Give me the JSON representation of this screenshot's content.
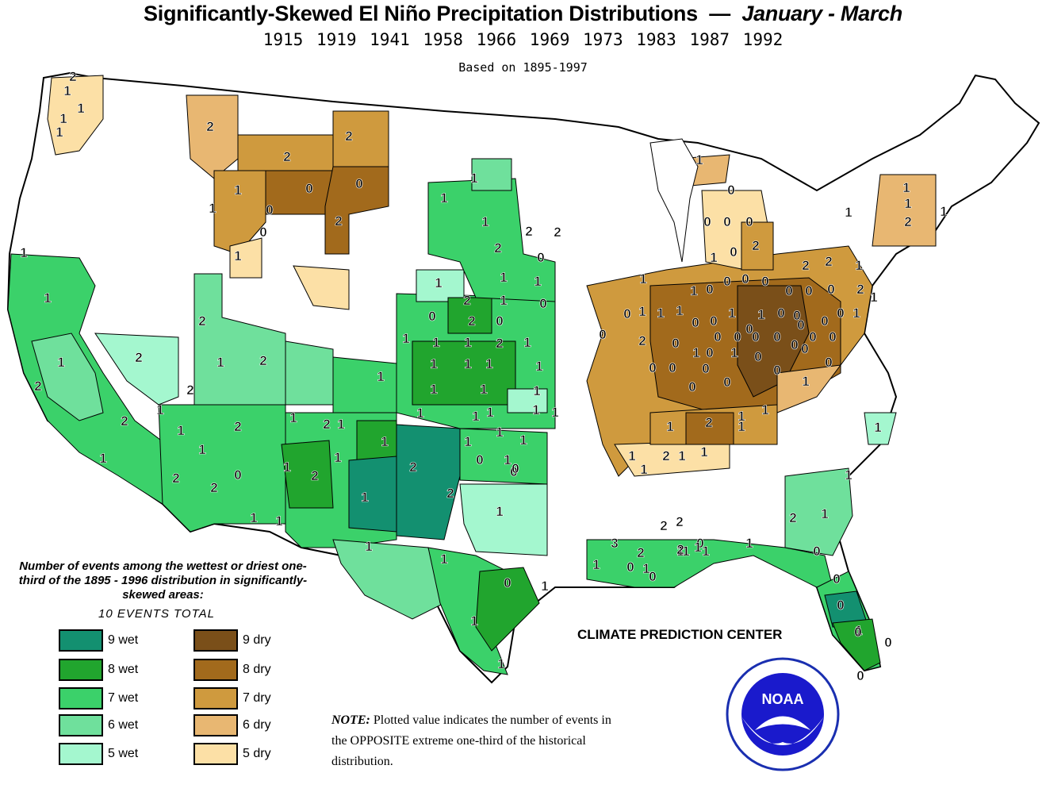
{
  "title": {
    "main": "Significantly-Skewed El Niño Precipitation Distributions",
    "dash": "—",
    "season": "January - March"
  },
  "years": "1915 1919 1941 1958 1966 1969 1973 1983 1987 1992",
  "based_on": "Based on 1895-1997",
  "colors": {
    "wet9": "#139070",
    "wet8": "#21a52e",
    "wet7": "#3bd16a",
    "wet6": "#6fe09c",
    "wet5": "#a4f7cf",
    "dry9": "#7a4f19",
    "dry8": "#a26a1c",
    "dry7": "#cf9a3e",
    "dry6": "#e8b772",
    "dry5": "#fce0a6",
    "none": "#ffffff"
  },
  "legend": {
    "title": "Number of events among the wettest or driest one-third of the 1895 - 1996 distribution in significantly-skewed areas:",
    "total": "10 EVENTS TOTAL",
    "wet": [
      {
        "label": "9 wet",
        "color": "#139070"
      },
      {
        "label": "8 wet",
        "color": "#21a52e"
      },
      {
        "label": "7 wet",
        "color": "#3bd16a"
      },
      {
        "label": "6 wet",
        "color": "#6fe09c"
      },
      {
        "label": "5 wet",
        "color": "#a4f7cf"
      }
    ],
    "dry": [
      {
        "label": "9 dry",
        "color": "#7a4f19"
      },
      {
        "label": "8 dry",
        "color": "#a26a1c"
      },
      {
        "label": "7 dry",
        "color": "#cf9a3e"
      },
      {
        "label": "6 dry",
        "color": "#e8b772"
      },
      {
        "label": "5 dry",
        "color": "#fce0a6"
      }
    ]
  },
  "note": {
    "lead": "NOTE:",
    "text": "Plotted value indicates the number of events in the OPPOSITE extreme one-third of the historical distribution."
  },
  "credit": "CLIMATE PREDICTION CENTER",
  "logo": {
    "text": "NOAA",
    "icon": "noaa-seal-icon"
  },
  "map_values": {
    "wa_or": [
      "2",
      "1",
      "1",
      "1",
      "1"
    ],
    "mt_wy": [
      "2",
      "2",
      "2",
      "1",
      "0",
      "0",
      "1",
      "0",
      "0",
      "2",
      "1",
      "1",
      "1"
    ],
    "plains": [
      "1",
      "1",
      "2",
      "2",
      "2",
      "0",
      "1",
      "1",
      "0",
      "2",
      "1",
      "0",
      "2",
      "0",
      "1",
      "1",
      "1",
      "2",
      "1",
      "1",
      "1",
      "1",
      "1",
      "1",
      "1",
      "1",
      "1",
      "1",
      "1",
      "1"
    ],
    "west": [
      "1",
      "1",
      "1",
      "2",
      "2",
      "1",
      "2",
      "2",
      "2",
      "2",
      "1",
      "1",
      "1",
      "2",
      "1",
      "2",
      "1",
      "1",
      "2",
      "2",
      "0",
      "1",
      "1",
      "1",
      "1",
      "2",
      "1",
      "1"
    ],
    "southwest": [
      "1",
      "2",
      "2",
      "1",
      "1",
      "1",
      "1",
      "0",
      "1",
      "1",
      "1",
      "1",
      "1",
      "1",
      "0",
      "1",
      "1",
      "0",
      "1",
      "1",
      "0"
    ],
    "midwest_dry": [
      "1",
      "0",
      "1",
      "1",
      "1",
      "0",
      "2",
      "0",
      "0",
      "0",
      "1",
      "1",
      "0",
      "1",
      "0",
      "0",
      "0",
      "0",
      "2",
      "0",
      "0",
      "0",
      "0",
      "1",
      "0",
      "1",
      "0",
      "0",
      "0",
      "0",
      "0",
      "0",
      "0",
      "2",
      "2",
      "1",
      "2",
      "1",
      "1",
      "1",
      "0",
      "0",
      "0",
      "0",
      "0",
      "0",
      "0",
      "0",
      "0",
      "0",
      "0",
      "0",
      "0",
      "0",
      "0",
      "0",
      "0",
      "0",
      "1",
      "1",
      "1"
    ],
    "se": [
      "1",
      "2",
      "1",
      "1",
      "1",
      "1",
      "2",
      "1",
      "1",
      "1",
      "2",
      "0",
      "0",
      "0",
      "1",
      "3",
      "1",
      "2",
      "2",
      "2",
      "2",
      "1",
      "1",
      "1",
      "0",
      "1",
      "0",
      "0",
      "1",
      "0",
      "0",
      "1",
      "0",
      "1",
      "2",
      "1",
      "1"
    ]
  }
}
